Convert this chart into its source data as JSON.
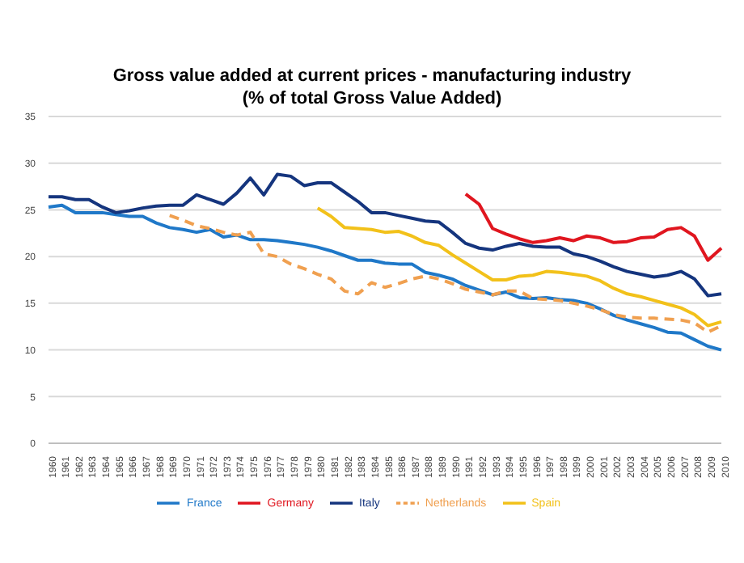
{
  "chart_data": {
    "type": "line",
    "title": "Gross value added at current prices - manufacturing industry",
    "subtitle": "(% of total Gross Value Added)",
    "categories": [
      "1960",
      "1961",
      "1962",
      "1963",
      "1964",
      "1965",
      "1966",
      "1967",
      "1968",
      "1969",
      "1970",
      "1971",
      "1972",
      "1973",
      "1974",
      "1975",
      "1976",
      "1977",
      "1978",
      "1979",
      "1980",
      "1981",
      "1982",
      "1983",
      "1984",
      "1985",
      "1986",
      "1987",
      "1988",
      "1989",
      "1990",
      "1991",
      "1992",
      "1993",
      "1994",
      "1995",
      "1996",
      "1997",
      "1998",
      "1999",
      "2000",
      "2001",
      "2002",
      "2003",
      "2004",
      "2005",
      "2006",
      "2007",
      "2008",
      "2009",
      "2010"
    ],
    "series": [
      {
        "name": "Germany",
        "color": "#e0161f",
        "values": [
          null,
          null,
          null,
          null,
          null,
          null,
          null,
          null,
          null,
          null,
          null,
          null,
          null,
          null,
          null,
          null,
          null,
          null,
          null,
          null,
          null,
          null,
          null,
          null,
          null,
          null,
          null,
          null,
          null,
          null,
          null,
          26.7,
          25.6,
          23.0,
          22.4,
          21.9,
          21.5,
          21.7,
          22.0,
          21.7,
          22.2,
          22.0,
          21.5,
          21.6,
          22.0,
          22.1,
          22.9,
          23.1,
          22.2,
          19.6,
          20.9
        ]
      },
      {
        "name": "France",
        "color": "#1f78c8",
        "values": [
          25.3,
          25.5,
          24.7,
          24.7,
          24.7,
          24.5,
          24.3,
          24.3,
          23.6,
          23.1,
          22.9,
          22.6,
          22.9,
          22.1,
          22.3,
          21.8,
          21.8,
          21.7,
          21.5,
          21.3,
          21.0,
          20.6,
          20.1,
          19.6,
          19.6,
          19.3,
          19.2,
          19.2,
          18.3,
          18.0,
          17.6,
          16.9,
          16.4,
          15.9,
          16.2,
          15.6,
          15.5,
          15.6,
          15.4,
          15.3,
          15.0,
          14.4,
          13.7,
          13.2,
          12.8,
          12.4,
          11.9,
          11.8,
          11.1,
          10.4,
          10.0
        ]
      },
      {
        "name": "Italy",
        "color": "#15357e",
        "values": [
          26.4,
          26.4,
          26.1,
          26.1,
          25.3,
          24.7,
          24.9,
          25.2,
          25.4,
          25.5,
          25.5,
          26.6,
          26.1,
          25.6,
          26.8,
          28.4,
          26.6,
          28.8,
          28.6,
          27.6,
          27.9,
          27.9,
          26.9,
          25.9,
          24.7,
          24.7,
          24.4,
          24.1,
          23.8,
          23.7,
          22.6,
          21.4,
          20.9,
          20.7,
          21.1,
          21.4,
          21.1,
          21.0,
          21.0,
          20.3,
          20.0,
          19.5,
          18.9,
          18.4,
          18.1,
          17.8,
          18.0,
          18.4,
          17.6,
          15.8,
          16.0
        ]
      },
      {
        "name": "Spain",
        "color": "#f2c11a",
        "values": [
          null,
          null,
          null,
          null,
          null,
          null,
          null,
          null,
          null,
          null,
          null,
          null,
          null,
          null,
          null,
          null,
          null,
          null,
          null,
          null,
          25.2,
          24.3,
          23.1,
          23.0,
          22.9,
          22.6,
          22.7,
          22.2,
          21.5,
          21.2,
          20.2,
          19.3,
          18.4,
          17.5,
          17.5,
          17.9,
          18.0,
          18.4,
          18.3,
          18.1,
          17.9,
          17.4,
          16.6,
          16.0,
          15.7,
          15.3,
          14.9,
          14.5,
          13.8,
          12.6,
          13.0
        ]
      },
      {
        "name": "Netherlands",
        "color": "#f0a050",
        "line_style": "dashed",
        "values": [
          null,
          null,
          null,
          null,
          null,
          null,
          null,
          null,
          null,
          24.4,
          23.9,
          23.3,
          23.0,
          22.6,
          22.3,
          22.6,
          20.3,
          20.0,
          19.2,
          18.7,
          18.1,
          17.6,
          16.3,
          16.0,
          17.2,
          16.7,
          17.1,
          17.6,
          17.9,
          17.6,
          17.1,
          16.5,
          16.2,
          15.9,
          16.3,
          16.3,
          15.5,
          15.4,
          15.3,
          15.0,
          14.7,
          14.3,
          13.8,
          13.5,
          13.4,
          13.4,
          13.3,
          13.2,
          12.9,
          11.9,
          12.6
        ]
      }
    ],
    "ylim": [
      0,
      35
    ],
    "yticks": [
      0,
      5,
      10,
      15,
      20,
      25,
      30,
      35
    ],
    "grid": "y",
    "legend": "bottom",
    "marker": "none",
    "line_style": "solid"
  }
}
